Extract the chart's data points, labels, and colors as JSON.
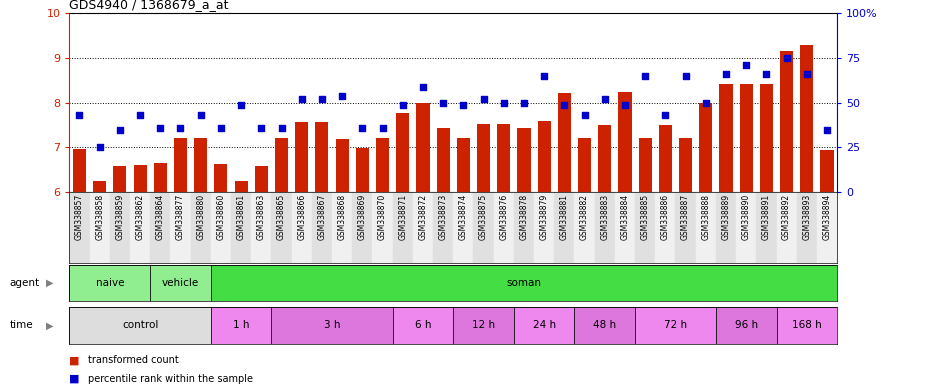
{
  "title": "GDS4940 / 1368679_a_at",
  "samples": [
    "GSM338857",
    "GSM338858",
    "GSM338859",
    "GSM338862",
    "GSM338864",
    "GSM338877",
    "GSM338880",
    "GSM338860",
    "GSM338861",
    "GSM338863",
    "GSM338865",
    "GSM338866",
    "GSM338867",
    "GSM338868",
    "GSM338869",
    "GSM338870",
    "GSM338871",
    "GSM338872",
    "GSM338873",
    "GSM338874",
    "GSM338875",
    "GSM338876",
    "GSM338878",
    "GSM338879",
    "GSM338881",
    "GSM338882",
    "GSM338883",
    "GSM338884",
    "GSM338885",
    "GSM338886",
    "GSM338887",
    "GSM338888",
    "GSM338889",
    "GSM338890",
    "GSM338891",
    "GSM338892",
    "GSM338893",
    "GSM338894"
  ],
  "bar_values": [
    6.97,
    6.25,
    6.58,
    6.61,
    6.64,
    7.21,
    7.2,
    6.62,
    6.25,
    6.59,
    7.22,
    7.56,
    7.56,
    7.19,
    6.98,
    7.2,
    7.77,
    8.0,
    7.44,
    7.21,
    7.52,
    7.52,
    7.44,
    7.58,
    8.22,
    7.21,
    7.5,
    8.23,
    7.21,
    7.51,
    7.21,
    7.99,
    8.42,
    8.42,
    8.42,
    9.15,
    9.3,
    6.95
  ],
  "scatter_percentile": [
    43,
    25,
    35,
    43,
    36,
    36,
    43,
    36,
    49,
    36,
    36,
    52,
    52,
    54,
    36,
    36,
    49,
    59,
    50,
    49,
    52,
    50,
    50,
    65,
    49,
    43,
    52,
    49,
    65,
    43,
    65,
    50,
    66,
    71,
    66,
    75,
    66,
    35
  ],
  "bar_color": "#cc2200",
  "scatter_color": "#0000cc",
  "ylim_left": [
    6,
    10
  ],
  "ylim_right": [
    0,
    100
  ],
  "yticks_left": [
    6,
    7,
    8,
    9,
    10
  ],
  "yticks_right": [
    0,
    25,
    50,
    75,
    100
  ],
  "agent_groups": [
    {
      "label": "naive",
      "start": 0,
      "end": 4,
      "color": "#90ee90"
    },
    {
      "label": "vehicle",
      "start": 4,
      "end": 7,
      "color": "#90ee90"
    },
    {
      "label": "soman",
      "start": 7,
      "end": 38,
      "color": "#44dd44"
    }
  ],
  "time_groups": [
    {
      "label": "control",
      "start": 0,
      "end": 7,
      "color": "#dddddd"
    },
    {
      "label": "1 h",
      "start": 7,
      "end": 10,
      "color": "#ee88ee"
    },
    {
      "label": "3 h",
      "start": 10,
      "end": 16,
      "color": "#dd77dd"
    },
    {
      "label": "6 h",
      "start": 16,
      "end": 19,
      "color": "#ee88ee"
    },
    {
      "label": "12 h",
      "start": 19,
      "end": 22,
      "color": "#dd77dd"
    },
    {
      "label": "24 h",
      "start": 22,
      "end": 25,
      "color": "#ee88ee"
    },
    {
      "label": "48 h",
      "start": 25,
      "end": 28,
      "color": "#dd77dd"
    },
    {
      "label": "72 h",
      "start": 28,
      "end": 32,
      "color": "#ee88ee"
    },
    {
      "label": "96 h",
      "start": 32,
      "end": 35,
      "color": "#dd77dd"
    },
    {
      "label": "168 h",
      "start": 35,
      "end": 38,
      "color": "#ee88ee"
    }
  ],
  "legend_items": [
    {
      "label": "transformed count",
      "color": "#cc2200"
    },
    {
      "label": "percentile rank within the sample",
      "color": "#0000cc"
    }
  ]
}
